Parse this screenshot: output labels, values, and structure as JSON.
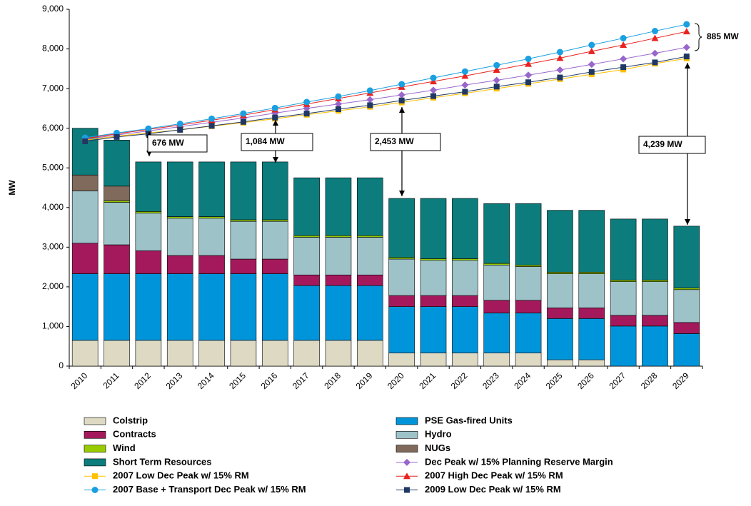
{
  "chart_data": {
    "type": "bar",
    "y_label": "MW",
    "categories": [
      "2010",
      "2011",
      "2012",
      "2013",
      "2014",
      "2015",
      "2016",
      "2017",
      "2018",
      "2019",
      "2020",
      "2021",
      "2022",
      "2023",
      "2024",
      "2025",
      "2026",
      "2027",
      "2028",
      "2029"
    ],
    "ylim": [
      0,
      9000
    ],
    "yticks": [
      0,
      {
        "value": 1000,
        "label": "1,000"
      },
      {
        "value": 2000,
        "label": "2,000"
      },
      {
        "value": 3000,
        "label": "3,000"
      },
      {
        "value": 4000,
        "label": "4,000"
      },
      {
        "value": 5000,
        "label": "5,000"
      },
      {
        "value": 6000,
        "label": "6,000"
      },
      {
        "value": 7000,
        "label": "7,000"
      },
      {
        "value": 8000,
        "label": "8,000"
      },
      {
        "value": 9000,
        "label": "9,000"
      }
    ],
    "series": [
      {
        "name": "Colstrip",
        "type": "bar",
        "color": "#ddd9c3",
        "values": [
          650,
          650,
          650,
          650,
          650,
          650,
          650,
          650,
          650,
          650,
          330,
          330,
          330,
          330,
          330,
          160,
          160,
          0,
          0,
          0
        ]
      },
      {
        "name": "PSE Gas-fired Units",
        "type": "bar",
        "color": "#0095da",
        "values": [
          1680,
          1680,
          1680,
          1680,
          1680,
          1680,
          1680,
          1380,
          1380,
          1380,
          1170,
          1170,
          1170,
          1010,
          1010,
          1040,
          1040,
          1010,
          1010,
          820
        ]
      },
      {
        "name": "Contracts",
        "type": "bar",
        "color": "#a3195b",
        "values": [
          770,
          730,
          580,
          460,
          460,
          370,
          370,
          270,
          270,
          270,
          280,
          280,
          280,
          320,
          320,
          270,
          270,
          270,
          270,
          280
        ]
      },
      {
        "name": "Hydro",
        "type": "bar",
        "color": "#9dc3c9",
        "values": [
          1320,
          1070,
          950,
          940,
          940,
          950,
          950,
          950,
          950,
          950,
          920,
          890,
          890,
          890,
          850,
          860,
          860,
          850,
          850,
          830
        ]
      },
      {
        "name": "Wind",
        "type": "bar",
        "color": "#99cc00",
        "values": [
          0,
          40,
          40,
          40,
          40,
          40,
          40,
          40,
          40,
          40,
          40,
          40,
          40,
          40,
          40,
          40,
          40,
          40,
          40,
          40
        ]
      },
      {
        "name": "NUGs",
        "type": "bar",
        "color": "#7f6a5b",
        "values": [
          400,
          370,
          0,
          0,
          0,
          0,
          0,
          0,
          0,
          0,
          0,
          0,
          0,
          0,
          0,
          0,
          0,
          0,
          0,
          0
        ]
      },
      {
        "name": "Short Term Resources",
        "type": "bar",
        "color": "#0c7c7c",
        "values": [
          1180,
          1160,
          1250,
          1380,
          1380,
          1460,
          1460,
          1460,
          1460,
          1460,
          1490,
          1520,
          1520,
          1510,
          1550,
          1560,
          1560,
          1540,
          1540,
          1560
        ]
      },
      {
        "name": "Dec Peak w/ 15% Planning Reserve Margin",
        "type": "line",
        "marker": "diamond",
        "color": "#9966cc",
        "values": [
          5720,
          5830,
          5930,
          6040,
          6150,
          6260,
          6380,
          6500,
          6610,
          6720,
          6840,
          6960,
          7090,
          7210,
          7340,
          7470,
          7610,
          7750,
          7890,
          8040
        ]
      },
      {
        "name": "2007 Low Dec Peak w/ 15% RM",
        "type": "line",
        "marker": "square",
        "color": "#ffc000",
        "values": [
          5700,
          5800,
          5880,
          5960,
          6050,
          6140,
          6240,
          6340,
          6440,
          6540,
          6650,
          6770,
          6880,
          7000,
          7120,
          7240,
          7360,
          7480,
          7630,
          7760
        ]
      },
      {
        "name": "2007 High Dec Peak w/ 15% RM",
        "type": "line",
        "marker": "triangle",
        "color": "#e8221f",
        "values": [
          5740,
          5860,
          5970,
          6080,
          6200,
          6330,
          6470,
          6610,
          6750,
          6890,
          7040,
          7180,
          7320,
          7470,
          7620,
          7770,
          7940,
          8100,
          8270,
          8440
        ]
      },
      {
        "name": "2007 Base + Transport Dec Peak w/ 15% RM",
        "type": "line",
        "marker": "circle",
        "color": "#1a9fe0",
        "values": [
          5760,
          5880,
          5990,
          6110,
          6240,
          6370,
          6510,
          6660,
          6800,
          6950,
          7110,
          7270,
          7430,
          7590,
          7750,
          7920,
          8100,
          8270,
          8450,
          8620
        ]
      },
      {
        "name": "2009 Low Dec Peak w/ 15% RM",
        "type": "line",
        "marker": "square",
        "color": "#1f3864",
        "values": [
          5670,
          5780,
          5860,
          5960,
          6060,
          6160,
          6270,
          6370,
          6480,
          6580,
          6700,
          6810,
          6920,
          7050,
          7160,
          7280,
          7420,
          7540,
          7660,
          7810
        ]
      }
    ],
    "annotations": [
      "676 MW",
      "1,084 MW",
      "2,453 MW",
      "4,239 MW",
      "885 MW"
    ]
  }
}
